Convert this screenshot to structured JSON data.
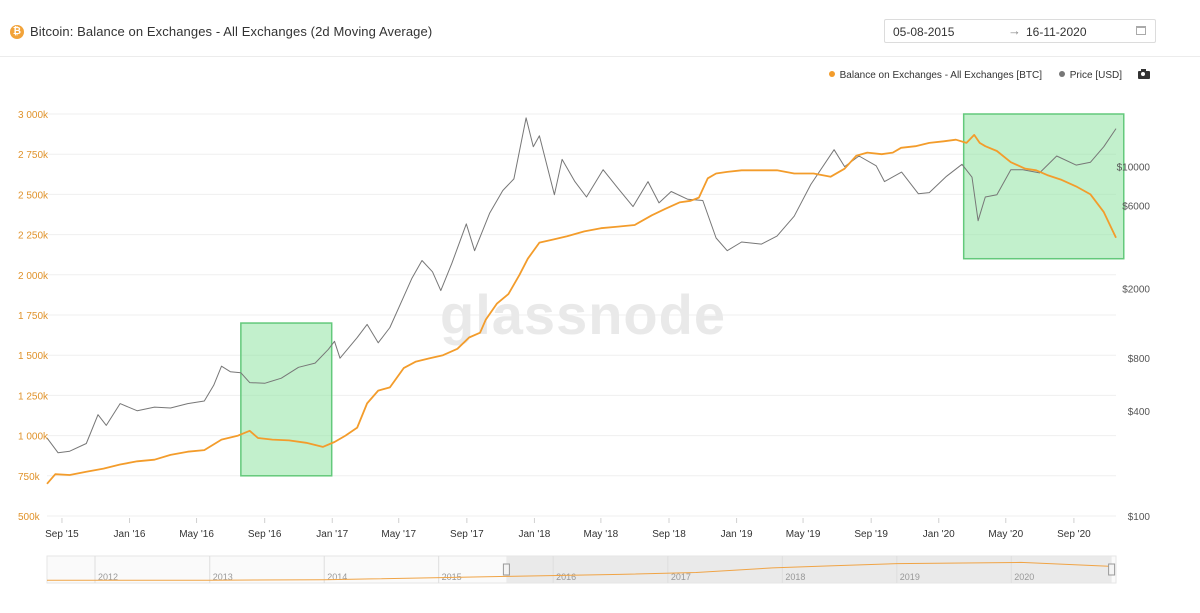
{
  "header": {
    "coin_icon": "bitcoin-icon",
    "coin_symbol": "₿",
    "title": "Bitcoin: Balance on Exchanges - All Exchanges (2d Moving Average)",
    "date_from": "05-08-2015",
    "date_arrow": "→",
    "date_to": "16-11-2020",
    "calendar_icon": "calendar-icon"
  },
  "legend": {
    "items": [
      {
        "label": "Balance on Exchanges - All Exchanges [BTC]",
        "color": "#f39c2b"
      },
      {
        "label": "Price [USD]",
        "color": "#777777"
      }
    ],
    "camera_icon": "camera-icon"
  },
  "watermark": "glassnode",
  "chart_data": {
    "type": "line",
    "title": "Bitcoin: Balance on Exchanges - All Exchanges (2d Moving Average)",
    "x_range": [
      "2015-08-05",
      "2020-11-16"
    ],
    "x_ticks": [
      "Sep '15",
      "Jan '16",
      "May '16",
      "Sep '16",
      "Jan '17",
      "May '17",
      "Sep '17",
      "Jan '18",
      "May '18",
      "Sep '18",
      "Jan '19",
      "May '19",
      "Sep '19",
      "Jan '20",
      "May '20",
      "Sep '20"
    ],
    "y_left": {
      "range": [
        500000,
        3000000
      ],
      "ticks": [
        "500k",
        "750k",
        "1 000k",
        "1 250k",
        "1 500k",
        "1 750k",
        "2 000k",
        "2 250k",
        "2 500k",
        "2 750k",
        "3 000k"
      ],
      "color": "#f39c2b"
    },
    "y_right": {
      "scale": "log",
      "ticks": [
        "$100",
        "$400",
        "$800",
        "$2000",
        "$6000",
        "$10000"
      ],
      "tick_values": [
        100,
        400,
        800,
        2000,
        6000,
        10000
      ]
    },
    "series": [
      {
        "name": "Balance on Exchanges - All Exchanges [BTC]",
        "color": "#f39c2b",
        "axis": "left",
        "points": [
          [
            "2015-08-05",
            700000
          ],
          [
            "2015-08-20",
            760000
          ],
          [
            "2015-09-15",
            755000
          ],
          [
            "2015-10-15",
            775000
          ],
          [
            "2015-11-15",
            795000
          ],
          [
            "2015-12-15",
            820000
          ],
          [
            "2016-01-15",
            840000
          ],
          [
            "2016-02-15",
            850000
          ],
          [
            "2016-03-15",
            880000
          ],
          [
            "2016-04-15",
            900000
          ],
          [
            "2016-05-15",
            910000
          ],
          [
            "2016-06-15",
            975000
          ],
          [
            "2016-07-15",
            1000000
          ],
          [
            "2016-08-05",
            1030000
          ],
          [
            "2016-08-20",
            985000
          ],
          [
            "2016-09-15",
            975000
          ],
          [
            "2016-10-15",
            970000
          ],
          [
            "2016-11-15",
            955000
          ],
          [
            "2016-12-15",
            930000
          ],
          [
            "2017-01-05",
            960000
          ],
          [
            "2017-01-25",
            1000000
          ],
          [
            "2017-02-15",
            1050000
          ],
          [
            "2017-03-05",
            1200000
          ],
          [
            "2017-03-25",
            1280000
          ],
          [
            "2017-04-15",
            1300000
          ],
          [
            "2017-05-10",
            1420000
          ],
          [
            "2017-06-01",
            1460000
          ],
          [
            "2017-06-25",
            1480000
          ],
          [
            "2017-07-20",
            1500000
          ],
          [
            "2017-08-15",
            1540000
          ],
          [
            "2017-09-05",
            1610000
          ],
          [
            "2017-09-25",
            1640000
          ],
          [
            "2017-10-05",
            1720000
          ],
          [
            "2017-10-25",
            1820000
          ],
          [
            "2017-11-15",
            1880000
          ],
          [
            "2017-12-05",
            2000000
          ],
          [
            "2017-12-20",
            2100000
          ],
          [
            "2018-01-10",
            2200000
          ],
          [
            "2018-02-05",
            2220000
          ],
          [
            "2018-03-01",
            2240000
          ],
          [
            "2018-04-01",
            2270000
          ],
          [
            "2018-05-01",
            2290000
          ],
          [
            "2018-06-01",
            2300000
          ],
          [
            "2018-07-01",
            2310000
          ],
          [
            "2018-08-01",
            2370000
          ],
          [
            "2018-08-25",
            2410000
          ],
          [
            "2018-09-20",
            2450000
          ],
          [
            "2018-10-10",
            2460000
          ],
          [
            "2018-10-25",
            2480000
          ],
          [
            "2018-11-10",
            2600000
          ],
          [
            "2018-11-25",
            2630000
          ],
          [
            "2018-12-15",
            2640000
          ],
          [
            "2019-01-10",
            2650000
          ],
          [
            "2019-02-15",
            2650000
          ],
          [
            "2019-03-15",
            2650000
          ],
          [
            "2019-04-15",
            2630000
          ],
          [
            "2019-05-20",
            2630000
          ],
          [
            "2019-06-20",
            2610000
          ],
          [
            "2019-07-15",
            2660000
          ],
          [
            "2019-08-05",
            2740000
          ],
          [
            "2019-08-25",
            2760000
          ],
          [
            "2019-09-20",
            2750000
          ],
          [
            "2019-10-10",
            2760000
          ],
          [
            "2019-10-25",
            2790000
          ],
          [
            "2019-11-20",
            2800000
          ],
          [
            "2019-12-15",
            2820000
          ],
          [
            "2020-01-10",
            2830000
          ],
          [
            "2020-02-01",
            2840000
          ],
          [
            "2020-02-20",
            2820000
          ],
          [
            "2020-03-05",
            2870000
          ],
          [
            "2020-03-15",
            2820000
          ],
          [
            "2020-03-25",
            2800000
          ],
          [
            "2020-04-15",
            2770000
          ],
          [
            "2020-05-10",
            2700000
          ],
          [
            "2020-06-05",
            2660000
          ],
          [
            "2020-06-25",
            2650000
          ],
          [
            "2020-07-15",
            2620000
          ],
          [
            "2020-08-10",
            2590000
          ],
          [
            "2020-09-05",
            2550000
          ],
          [
            "2020-10-01",
            2500000
          ],
          [
            "2020-10-25",
            2390000
          ],
          [
            "2020-11-16",
            2230000
          ]
        ]
      },
      {
        "name": "Price [USD]",
        "color": "#777777",
        "axis": "right",
        "points": [
          [
            "2015-08-05",
            280
          ],
          [
            "2015-08-25",
            230
          ],
          [
            "2015-09-15",
            235
          ],
          [
            "2015-10-15",
            260
          ],
          [
            "2015-11-05",
            380
          ],
          [
            "2015-11-20",
            330
          ],
          [
            "2015-12-15",
            440
          ],
          [
            "2016-01-15",
            400
          ],
          [
            "2016-02-15",
            420
          ],
          [
            "2016-03-15",
            415
          ],
          [
            "2016-04-15",
            440
          ],
          [
            "2016-05-15",
            455
          ],
          [
            "2016-06-01",
            560
          ],
          [
            "2016-06-15",
            720
          ],
          [
            "2016-07-01",
            670
          ],
          [
            "2016-07-20",
            660
          ],
          [
            "2016-08-05",
            580
          ],
          [
            "2016-09-01",
            575
          ],
          [
            "2016-10-01",
            615
          ],
          [
            "2016-11-01",
            710
          ],
          [
            "2016-12-01",
            750
          ],
          [
            "2016-12-25",
            900
          ],
          [
            "2017-01-05",
            1000
          ],
          [
            "2017-01-15",
            800
          ],
          [
            "2017-02-15",
            1050
          ],
          [
            "2017-03-05",
            1250
          ],
          [
            "2017-03-25",
            980
          ],
          [
            "2017-04-15",
            1200
          ],
          [
            "2017-05-10",
            1800
          ],
          [
            "2017-05-25",
            2300
          ],
          [
            "2017-06-12",
            2900
          ],
          [
            "2017-07-01",
            2500
          ],
          [
            "2017-07-16",
            1950
          ],
          [
            "2017-08-05",
            2800
          ],
          [
            "2017-08-31",
            4700
          ],
          [
            "2017-09-15",
            3300
          ],
          [
            "2017-10-12",
            5400
          ],
          [
            "2017-11-05",
            7300
          ],
          [
            "2017-11-25",
            8500
          ],
          [
            "2017-12-17",
            19000
          ],
          [
            "2017-12-30",
            13000
          ],
          [
            "2018-01-10",
            15000
          ],
          [
            "2018-02-06",
            6900
          ],
          [
            "2018-02-20",
            11000
          ],
          [
            "2018-03-15",
            8200
          ],
          [
            "2018-04-05",
            6700
          ],
          [
            "2018-05-05",
            9600
          ],
          [
            "2018-06-01",
            7500
          ],
          [
            "2018-06-28",
            5900
          ],
          [
            "2018-07-25",
            8200
          ],
          [
            "2018-08-14",
            6200
          ],
          [
            "2018-09-05",
            7200
          ],
          [
            "2018-10-05",
            6500
          ],
          [
            "2018-11-01",
            6400
          ],
          [
            "2018-11-25",
            3900
          ],
          [
            "2018-12-15",
            3300
          ],
          [
            "2019-01-10",
            3700
          ],
          [
            "2019-02-15",
            3600
          ],
          [
            "2019-03-15",
            4000
          ],
          [
            "2019-04-15",
            5200
          ],
          [
            "2019-05-15",
            7900
          ],
          [
            "2019-06-26",
            12500
          ],
          [
            "2019-07-15",
            10000
          ],
          [
            "2019-08-10",
            11500
          ],
          [
            "2019-09-10",
            10100
          ],
          [
            "2019-09-25",
            8200
          ],
          [
            "2019-10-26",
            9300
          ],
          [
            "2019-11-25",
            7000
          ],
          [
            "2019-12-15",
            7100
          ],
          [
            "2020-01-15",
            8800
          ],
          [
            "2020-02-12",
            10300
          ],
          [
            "2020-03-01",
            8700
          ],
          [
            "2020-03-12",
            4900
          ],
          [
            "2020-03-25",
            6700
          ],
          [
            "2020-04-15",
            6900
          ],
          [
            "2020-05-10",
            9600
          ],
          [
            "2020-06-01",
            9600
          ],
          [
            "2020-07-01",
            9200
          ],
          [
            "2020-08-01",
            11500
          ],
          [
            "2020-09-05",
            10200
          ],
          [
            "2020-10-01",
            10600
          ],
          [
            "2020-10-25",
            13000
          ],
          [
            "2020-11-16",
            16500
          ]
        ]
      }
    ],
    "highlight_boxes": [
      {
        "x_from": "2016-07-20",
        "x_to": "2016-12-31",
        "y_from": 750000,
        "y_to": 1700000,
        "color": "#8fe3a3"
      },
      {
        "x_from": "2020-02-15",
        "x_to": "2020-11-30",
        "y_from": 2100000,
        "y_to": 3000000,
        "color": "#8fe3a3"
      }
    ],
    "navigator": {
      "years": [
        "2012",
        "2013",
        "2014",
        "2015",
        "2016",
        "2017",
        "2018",
        "2019",
        "2020"
      ],
      "range": [
        "2011-08-01",
        "2020-11-30"
      ],
      "selected": [
        "2015-08-05",
        "2020-11-16"
      ],
      "points": [
        [
          "2011-08-01",
          100000
        ],
        [
          "2013-01-01",
          120000
        ],
        [
          "2014-01-01",
          200000
        ],
        [
          "2014-06-01",
          320000
        ],
        [
          "2015-08-05",
          700000
        ],
        [
          "2016-08-01",
          1000000
        ],
        [
          "2017-04-01",
          1300000
        ],
        [
          "2017-12-01",
          2000000
        ],
        [
          "2018-06-01",
          2300000
        ],
        [
          "2019-01-01",
          2650000
        ],
        [
          "2020-02-01",
          2840000
        ],
        [
          "2020-11-16",
          2230000
        ]
      ]
    }
  }
}
